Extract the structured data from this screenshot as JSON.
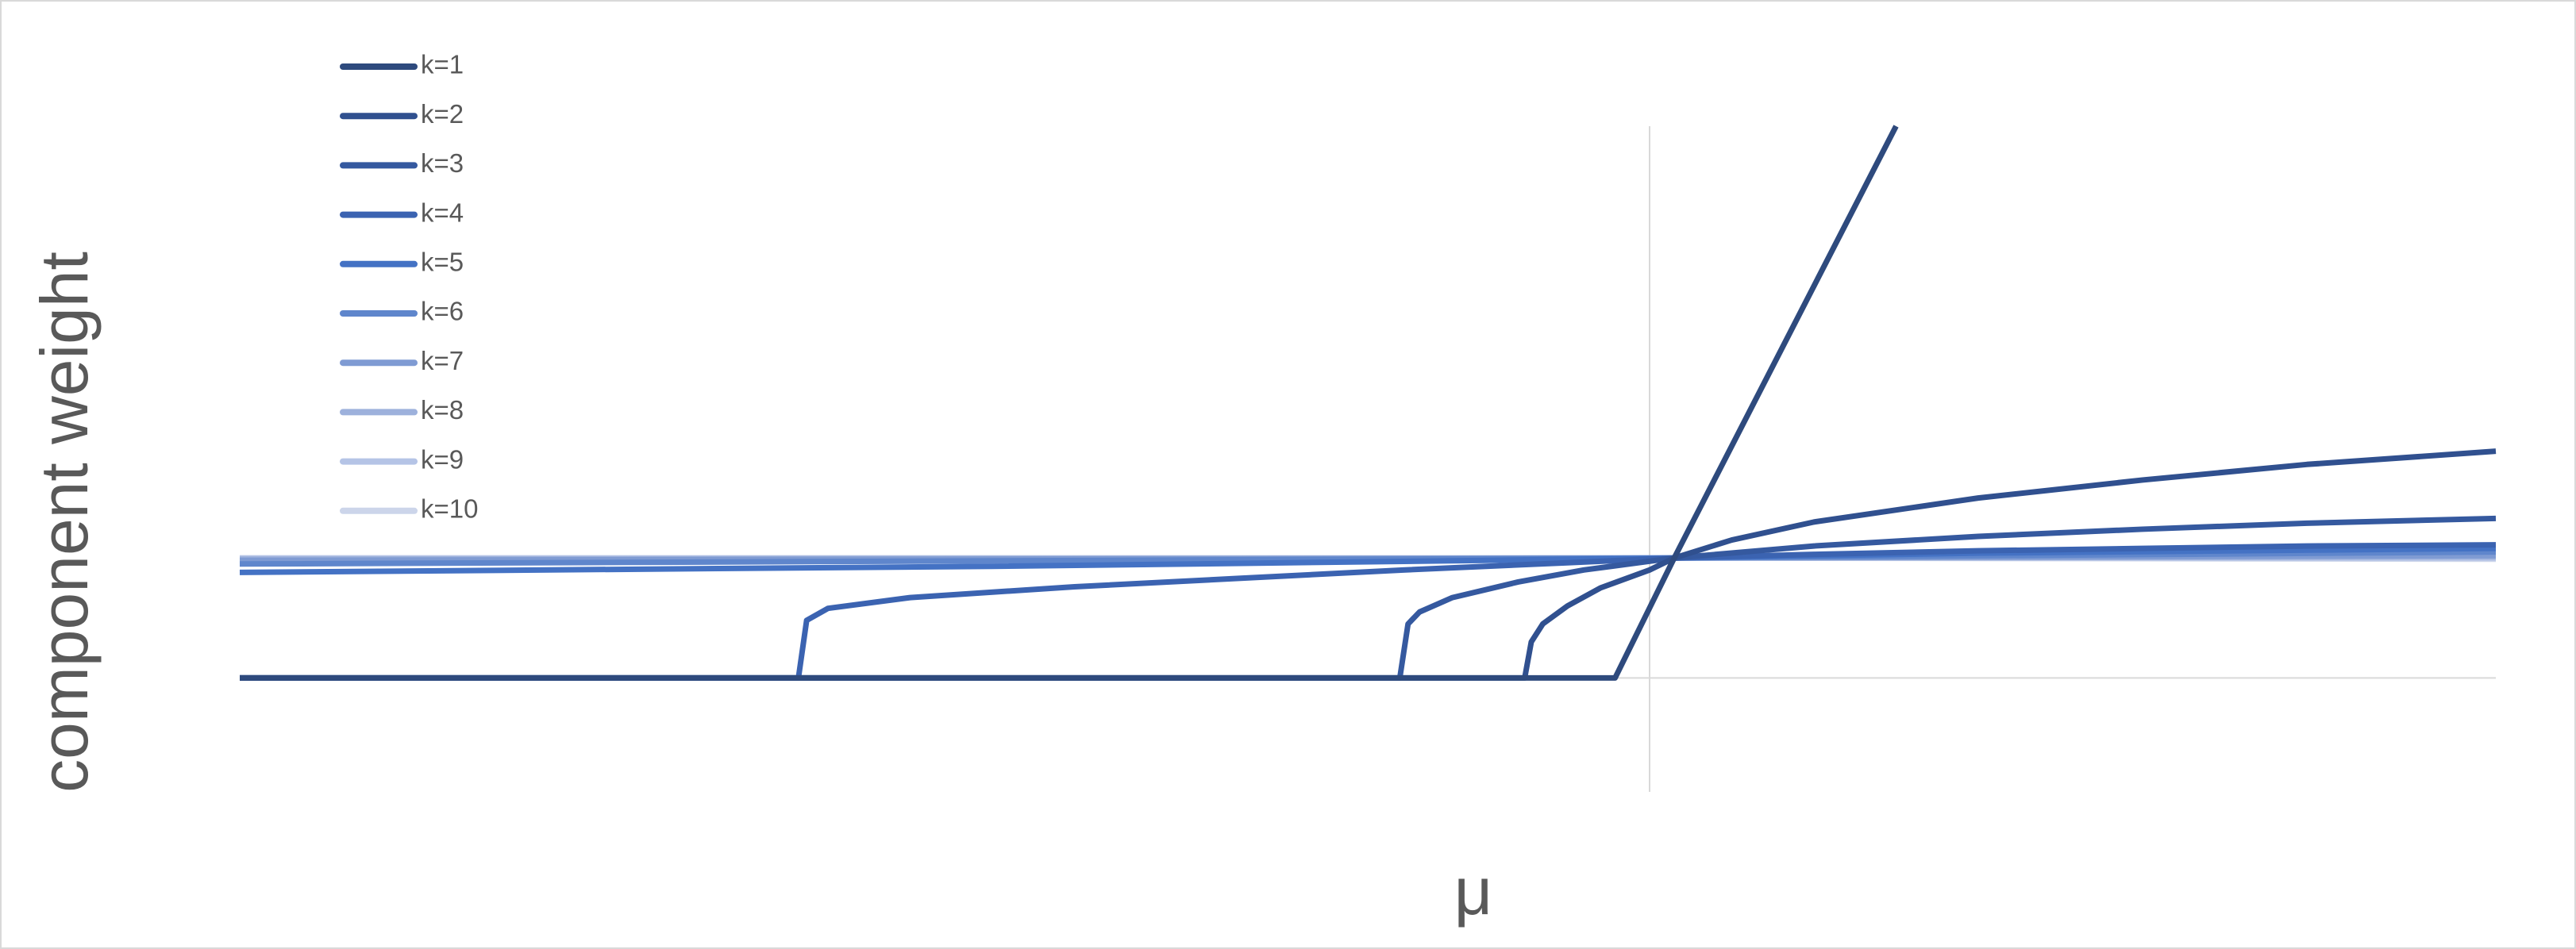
{
  "chart_data": {
    "type": "line",
    "x_label": "μ",
    "y_label": "component weight",
    "xlim": [
      -8.58,
      5.15
    ],
    "ylim": [
      -0.95,
      4.6
    ],
    "legend": "upper left",
    "series": [
      {
        "name": "k=1",
        "color": "#2e4a7d",
        "x": [
          -8.58,
          -0.21,
          0.15,
          1.5
        ],
        "values": [
          0,
          0,
          1.0,
          4.6
        ]
      },
      {
        "name": "k=2",
        "color": "#30508f",
        "x": [
          -8.58,
          -0.76,
          -0.72,
          -0.65,
          -0.5,
          -0.3,
          0,
          0.15,
          0.5,
          1,
          2,
          3,
          4,
          5.15
        ],
        "values": [
          0,
          0,
          0.3,
          0.45,
          0.6,
          0.75,
          0.9,
          1.0,
          1.15,
          1.3,
          1.5,
          1.65,
          1.78,
          1.89
        ]
      },
      {
        "name": "k=3",
        "color": "#35599f",
        "x": [
          -8.58,
          -1.52,
          -1.47,
          -1.4,
          -1.2,
          -0.8,
          -0.4,
          0.15,
          1,
          2,
          3,
          4,
          5.15
        ],
        "values": [
          0,
          0,
          0.45,
          0.55,
          0.67,
          0.8,
          0.9,
          1.0,
          1.1,
          1.18,
          1.24,
          1.29,
          1.33
        ]
      },
      {
        "name": "k=4",
        "color": "#3b63b1",
        "x": [
          -8.58,
          -5.18,
          -5.13,
          -5.0,
          -4.5,
          -3.5,
          -2.5,
          -1.5,
          -0.5,
          0.15,
          1,
          2,
          3,
          4,
          5.15
        ],
        "values": [
          0,
          0,
          0.48,
          0.58,
          0.67,
          0.76,
          0.83,
          0.9,
          0.96,
          1.0,
          1.03,
          1.06,
          1.08,
          1.1,
          1.11
        ]
      },
      {
        "name": "k=5",
        "color": "#4472c4",
        "x": [
          -8.58,
          -4,
          -1,
          0.15,
          2,
          5.15
        ],
        "values": [
          0.88,
          0.93,
          0.98,
          1.0,
          1.04,
          1.08
        ]
      },
      {
        "name": "k=6",
        "color": "#5f86cc",
        "x": [
          -8.58,
          0.15,
          5.15
        ],
        "values": [
          0.95,
          1.0,
          1.05
        ]
      },
      {
        "name": "k=7",
        "color": "#7f9bd3",
        "x": [
          -8.58,
          0.15,
          5.15
        ],
        "values": [
          0.98,
          1.0,
          1.02
        ]
      },
      {
        "name": "k=8",
        "color": "#9db1dc",
        "x": [
          -8.58,
          0.15,
          5.15
        ],
        "values": [
          0.99,
          1.0,
          1.01
        ]
      },
      {
        "name": "k=9",
        "color": "#b5c4e6",
        "x": [
          -8.58,
          0.15,
          5.15
        ],
        "values": [
          1.0,
          1.0,
          1.0
        ]
      },
      {
        "name": "k=10",
        "color": "#ccd5ea",
        "x": [
          -8.58,
          0.15,
          5.15
        ],
        "values": [
          1.0,
          1.0,
          0.99
        ]
      }
    ]
  }
}
